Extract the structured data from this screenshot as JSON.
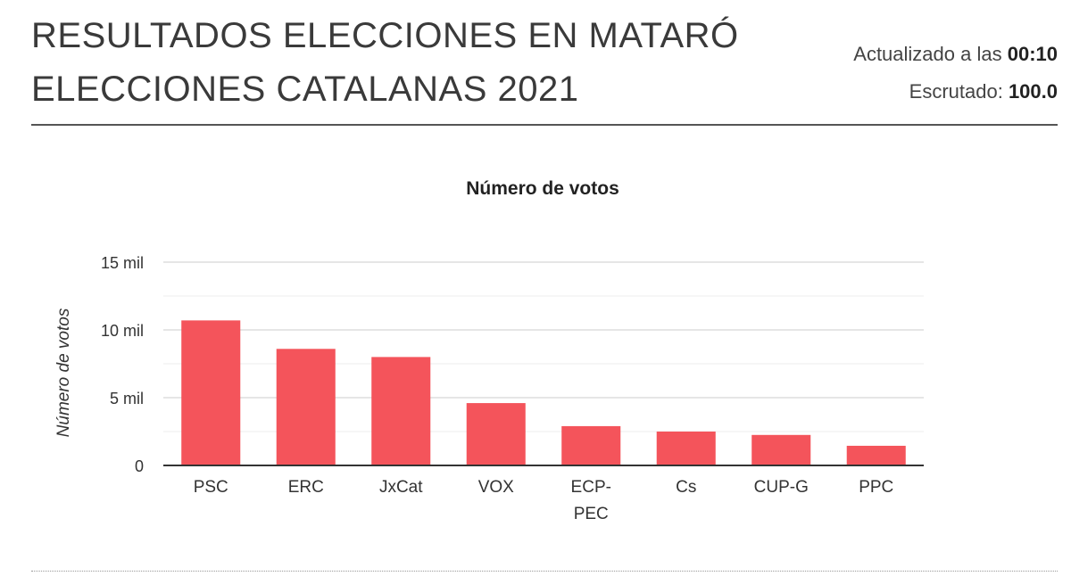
{
  "header": {
    "title_line1": "RESULTADOS ELECCIONES EN MATARÓ",
    "title_line2": "ELECCIONES CATALANAS 2021",
    "updated_label": "Actualizado a las",
    "updated_time": "00:10",
    "scrutinized_label": "Escrutado:",
    "scrutinized_value": "100.0"
  },
  "chart_data": {
    "type": "bar",
    "title": "Número de votos",
    "xlabel": "",
    "ylabel": "Número de votos",
    "categories": [
      "PSC",
      "ERC",
      "JxCat",
      "VOX",
      "ECP-PEC",
      "Cs",
      "CUP-G",
      "PPC"
    ],
    "category_labels": [
      [
        "PSC"
      ],
      [
        "ERC"
      ],
      [
        "JxCat"
      ],
      [
        "VOX"
      ],
      [
        "ECP-",
        "PEC"
      ],
      [
        "Cs"
      ],
      [
        "CUP-G"
      ],
      [
        "PPC"
      ]
    ],
    "values": [
      10700,
      8600,
      8000,
      4600,
      2900,
      2500,
      2250,
      1450
    ],
    "ylim": [
      0,
      15000
    ],
    "yticks": [
      0,
      5000,
      10000,
      15000
    ],
    "ytick_labels": [
      "0",
      "5 mil",
      "10 mil",
      "15 mil"
    ],
    "minor_grid_step": 2500,
    "grid": true,
    "legend": "none",
    "bar_color": "#f4545b"
  }
}
